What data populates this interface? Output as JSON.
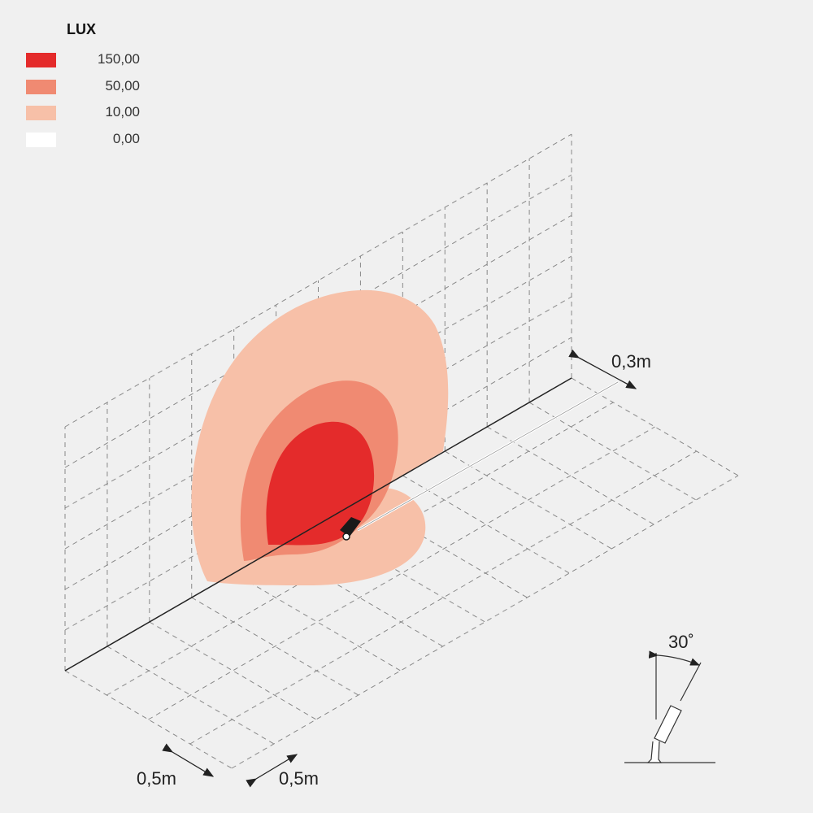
{
  "legend": {
    "title": "LUX",
    "items": [
      {
        "label": "150,00",
        "color": "#e42b2b"
      },
      {
        "label": "50,00",
        "color": "#f08a72"
      },
      {
        "label": "10,00",
        "color": "#f7c0a8"
      },
      {
        "label": "0,00",
        "color": "#ffffff"
      }
    ]
  },
  "dimensions": {
    "wall_offset": "0,3m",
    "grid_x": "0,5m",
    "grid_y": "0,5m",
    "tilt_angle": "30˚"
  }
}
